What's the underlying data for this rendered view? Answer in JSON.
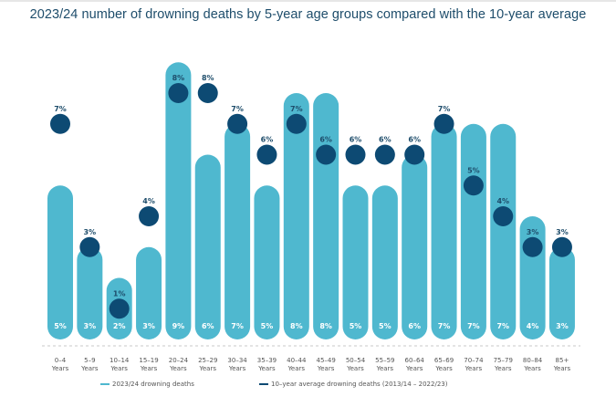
{
  "colors": {
    "bar": "#4fb8cf",
    "dot": "#0d4a73",
    "bar_label": "#ffffff",
    "dot_label": "#1e4d6b",
    "axis_dash": "#c8c8c8"
  },
  "chart_data": {
    "type": "bar",
    "title": "2023/24 number of drowning deaths by 5-year age groups compared with the 10-year average",
    "xlabel": "",
    "ylabel": "",
    "ylim": [
      0,
      10
    ],
    "grid": false,
    "categories": [
      {
        "range": "0–4",
        "unit": "Years"
      },
      {
        "range": "5–9",
        "unit": "Years"
      },
      {
        "range": "10–14",
        "unit": "Years"
      },
      {
        "range": "15–19",
        "unit": "Years"
      },
      {
        "range": "20–24",
        "unit": "Years"
      },
      {
        "range": "25–29",
        "unit": "Years"
      },
      {
        "range": "30–34",
        "unit": "Years"
      },
      {
        "range": "35–39",
        "unit": "Years"
      },
      {
        "range": "40–44",
        "unit": "Years"
      },
      {
        "range": "45–49",
        "unit": "Years"
      },
      {
        "range": "50–54",
        "unit": "Years"
      },
      {
        "range": "55–59",
        "unit": "Years"
      },
      {
        "range": "60–64",
        "unit": "Years"
      },
      {
        "range": "65–69",
        "unit": "Years"
      },
      {
        "range": "70–74",
        "unit": "Years"
      },
      {
        "range": "75–79",
        "unit": "Years"
      },
      {
        "range": "80–84",
        "unit": "Years"
      },
      {
        "range": "85+",
        "unit": "Years"
      }
    ],
    "series": [
      {
        "name": "2023/24 drowning deaths",
        "kind": "bar",
        "values": [
          5,
          3,
          2,
          3,
          9,
          6,
          7,
          5,
          8,
          8,
          5,
          5,
          6,
          7,
          7,
          7,
          4,
          3
        ],
        "labels": [
          "5%",
          "3%",
          "2%",
          "3%",
          "9%",
          "6%",
          "7%",
          "5%",
          "8%",
          "8%",
          "5%",
          "5%",
          "6%",
          "7%",
          "7%",
          "7%",
          "4%",
          "3%"
        ]
      },
      {
        "name": "10-year average drowning deaths (2013/14 – 2022/23)",
        "kind": "dot",
        "values": [
          7,
          3,
          1,
          4,
          8,
          8,
          7,
          6,
          7,
          6,
          6,
          6,
          6,
          7,
          5,
          4,
          3,
          3
        ],
        "labels": [
          "7%",
          "3%",
          "1%",
          "4%",
          "8%",
          "8%",
          "7%",
          "6%",
          "7%",
          "6%",
          "6%",
          "6%",
          "6%",
          "7%",
          "5%",
          "4%",
          "3%",
          "3%"
        ]
      }
    ],
    "legend": {
      "position": "bottom",
      "items": [
        {
          "label": "2023/24 drowning deaths",
          "color": "#4fb8cf"
        },
        {
          "label": "10–year average drowning deaths (2013/14 – 2022/23)",
          "color": "#0d4a73"
        }
      ]
    }
  }
}
